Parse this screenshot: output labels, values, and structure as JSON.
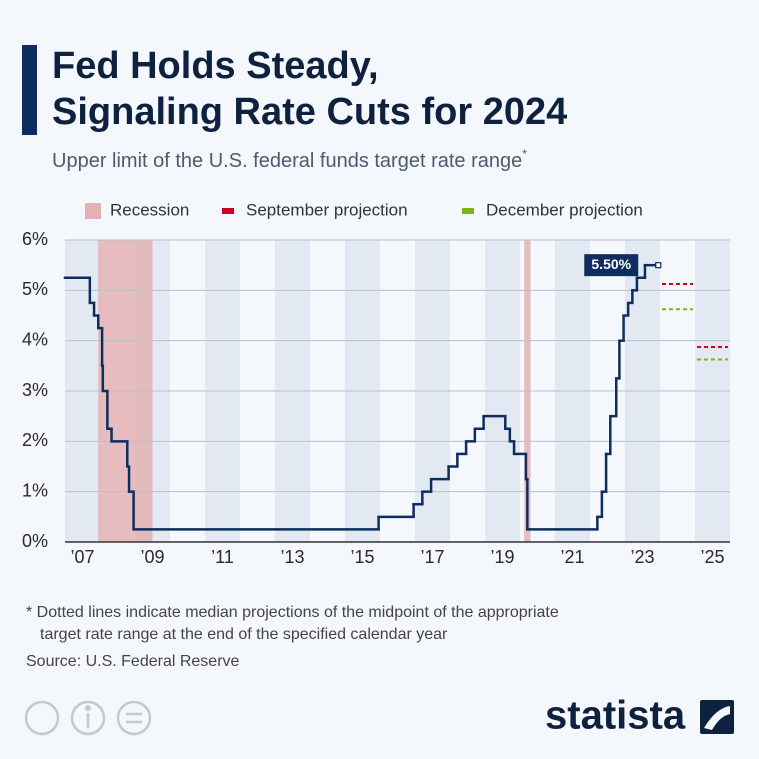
{
  "chart_data": {
    "type": "step-line",
    "title_lines": [
      "Fed Holds Steady,",
      "Signaling Rate Cuts for 2024"
    ],
    "subtitle": "Upper limit of the U.S. federal funds target rate range",
    "subtitle_mark": "*",
    "x": [
      2007.0,
      2007.71,
      2007.83,
      2007.95,
      2008.06,
      2008.08,
      2008.21,
      2008.33,
      2008.78,
      2008.83,
      2008.96,
      2015.96,
      2016.96,
      2017.21,
      2017.46,
      2017.96,
      2018.21,
      2018.46,
      2018.71,
      2018.96,
      2019.58,
      2019.71,
      2019.83,
      2020.17,
      2020.21,
      2022.21,
      2022.34,
      2022.46,
      2022.58,
      2022.75,
      2022.84,
      2022.96,
      2023.09,
      2023.21,
      2023.34,
      2023.57,
      2023.95
    ],
    "values": [
      5.25,
      4.75,
      4.5,
      4.25,
      3.5,
      3.0,
      2.25,
      2.0,
      1.5,
      1.0,
      0.25,
      0.5,
      0.75,
      1.0,
      1.25,
      1.5,
      1.75,
      2.0,
      2.25,
      2.5,
      2.25,
      2.0,
      1.75,
      1.25,
      0.25,
      0.5,
      1.0,
      1.75,
      2.5,
      3.25,
      4.0,
      4.5,
      4.75,
      5.0,
      5.25,
      5.5,
      5.5
    ],
    "color": "#0e2d5e",
    "annotation": "5.50%",
    "recession": {
      "name": "Recession",
      "color": "#e3b1b3",
      "periods": [
        [
          2007.95,
          2009.5
        ],
        [
          2020.12,
          2020.3
        ]
      ]
    },
    "series": [
      {
        "name": "September projection",
        "color": "#d0021b",
        "x": [
          2024,
          2025
        ],
        "values": [
          5.125,
          3.875
        ]
      },
      {
        "name": "December projection",
        "color": "#7cb518",
        "x": [
          2024,
          2025
        ],
        "values": [
          4.625,
          3.625
        ]
      }
    ],
    "xlim": [
      2007,
      2026
    ],
    "xticks": [
      {
        "value": 2007.5,
        "label": "’07"
      },
      {
        "value": 2009.5,
        "label": "’09"
      },
      {
        "value": 2011.5,
        "label": "’11"
      },
      {
        "value": 2013.5,
        "label": "’13"
      },
      {
        "value": 2015.5,
        "label": "’15"
      },
      {
        "value": 2017.5,
        "label": "’17"
      },
      {
        "value": 2019.5,
        "label": "’19"
      },
      {
        "value": 2021.5,
        "label": "’21"
      },
      {
        "value": 2023.5,
        "label": "’23"
      },
      {
        "value": 2025.5,
        "label": "’25"
      }
    ],
    "ylim": [
      0,
      6
    ],
    "yticks": [
      {
        "value": 0,
        "label": "0%"
      },
      {
        "value": 1,
        "label": "1%"
      },
      {
        "value": 2,
        "label": "2%"
      },
      {
        "value": 3,
        "label": "3%"
      },
      {
        "value": 4,
        "label": "4%"
      },
      {
        "value": 5,
        "label": "5%"
      },
      {
        "value": 6,
        "label": "6%"
      }
    ],
    "grid": true,
    "footnote_lines": [
      "* Dotted lines indicate median projections of the midpoint of the appropriate",
      "target rate range at the end of the specified calendar year"
    ],
    "source": "Source: U.S. Federal Reserve",
    "brand": "statista"
  }
}
